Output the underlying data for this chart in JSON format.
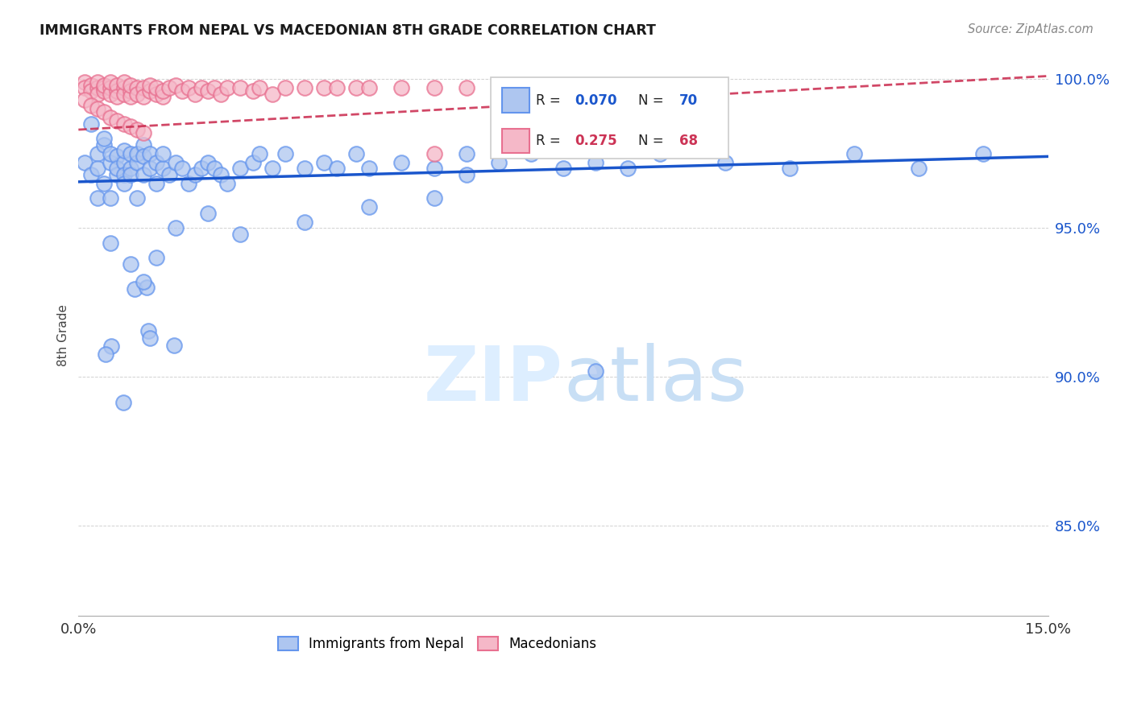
{
  "title": "IMMIGRANTS FROM NEPAL VS MACEDONIAN 8TH GRADE CORRELATION CHART",
  "source": "Source: ZipAtlas.com",
  "ylabel": "8th Grade",
  "xlim": [
    0.0,
    0.15
  ],
  "ylim": [
    0.82,
    1.008
  ],
  "yticks": [
    0.85,
    0.9,
    0.95,
    1.0
  ],
  "blue_R": 0.07,
  "blue_N": 70,
  "pink_R": 0.275,
  "pink_N": 68,
  "blue_face_color": "#aec6f0",
  "blue_edge_color": "#6495ED",
  "pink_face_color": "#f5b8c8",
  "pink_edge_color": "#e87090",
  "blue_line_color": "#1a56cc",
  "pink_line_color": "#cc3355",
  "background_color": "#ffffff",
  "blue_line_y": [
    0.9655,
    0.974
  ],
  "pink_line_y": [
    0.983,
    1.001
  ],
  "blue_scatter_x": [
    0.001,
    0.002,
    0.002,
    0.003,
    0.003,
    0.003,
    0.004,
    0.004,
    0.004,
    0.005,
    0.005,
    0.005,
    0.006,
    0.006,
    0.006,
    0.007,
    0.007,
    0.007,
    0.007,
    0.008,
    0.008,
    0.008,
    0.009,
    0.009,
    0.009,
    0.01,
    0.01,
    0.01,
    0.011,
    0.011,
    0.012,
    0.012,
    0.013,
    0.013,
    0.014,
    0.015,
    0.016,
    0.017,
    0.018,
    0.019,
    0.02,
    0.021,
    0.022,
    0.023,
    0.025,
    0.027,
    0.028,
    0.03,
    0.032,
    0.035,
    0.038,
    0.04,
    0.043,
    0.045,
    0.05,
    0.055,
    0.06,
    0.065,
    0.07,
    0.075,
    0.08,
    0.085,
    0.09,
    0.1,
    0.11,
    0.12,
    0.13,
    0.14,
    0.08,
    0.06
  ],
  "blue_scatter_y": [
    0.972,
    0.968,
    0.985,
    0.975,
    0.97,
    0.96,
    0.978,
    0.965,
    0.98,
    0.972,
    0.96,
    0.975,
    0.974,
    0.968,
    0.97,
    0.972,
    0.968,
    0.976,
    0.965,
    0.97,
    0.975,
    0.968,
    0.972,
    0.96,
    0.975,
    0.978,
    0.974,
    0.968,
    0.975,
    0.97,
    0.972,
    0.965,
    0.97,
    0.975,
    0.968,
    0.972,
    0.97,
    0.965,
    0.968,
    0.97,
    0.972,
    0.97,
    0.968,
    0.965,
    0.97,
    0.972,
    0.975,
    0.97,
    0.975,
    0.97,
    0.972,
    0.97,
    0.975,
    0.97,
    0.972,
    0.97,
    0.968,
    0.972,
    0.975,
    0.97,
    0.972,
    0.97,
    0.975,
    0.972,
    0.97,
    0.975,
    0.97,
    0.975,
    0.902,
    0.975
  ],
  "pink_scatter_x": [
    0.001,
    0.001,
    0.002,
    0.002,
    0.003,
    0.003,
    0.003,
    0.004,
    0.004,
    0.004,
    0.005,
    0.005,
    0.005,
    0.006,
    0.006,
    0.006,
    0.007,
    0.007,
    0.007,
    0.008,
    0.008,
    0.008,
    0.009,
    0.009,
    0.01,
    0.01,
    0.011,
    0.011,
    0.012,
    0.012,
    0.013,
    0.013,
    0.014,
    0.015,
    0.016,
    0.017,
    0.018,
    0.019,
    0.02,
    0.021,
    0.022,
    0.023,
    0.025,
    0.027,
    0.028,
    0.03,
    0.032,
    0.035,
    0.038,
    0.04,
    0.043,
    0.045,
    0.05,
    0.055,
    0.06,
    0.065,
    0.07,
    0.001,
    0.002,
    0.003,
    0.004,
    0.005,
    0.006,
    0.007,
    0.008,
    0.009,
    0.01,
    0.055
  ],
  "pink_scatter_y": [
    0.999,
    0.997,
    0.998,
    0.996,
    0.997,
    0.999,
    0.995,
    0.997,
    0.996,
    0.998,
    0.997,
    0.995,
    0.999,
    0.996,
    0.998,
    0.994,
    0.997,
    0.995,
    0.999,
    0.996,
    0.994,
    0.998,
    0.997,
    0.995,
    0.997,
    0.994,
    0.996,
    0.998,
    0.995,
    0.997,
    0.994,
    0.996,
    0.997,
    0.998,
    0.996,
    0.997,
    0.995,
    0.997,
    0.996,
    0.997,
    0.995,
    0.997,
    0.997,
    0.996,
    0.997,
    0.995,
    0.997,
    0.997,
    0.997,
    0.997,
    0.997,
    0.997,
    0.997,
    0.997,
    0.997,
    0.997,
    0.997,
    0.993,
    0.991,
    0.99,
    0.989,
    0.987,
    0.986,
    0.985,
    0.984,
    0.983,
    0.982,
    0.975
  ]
}
